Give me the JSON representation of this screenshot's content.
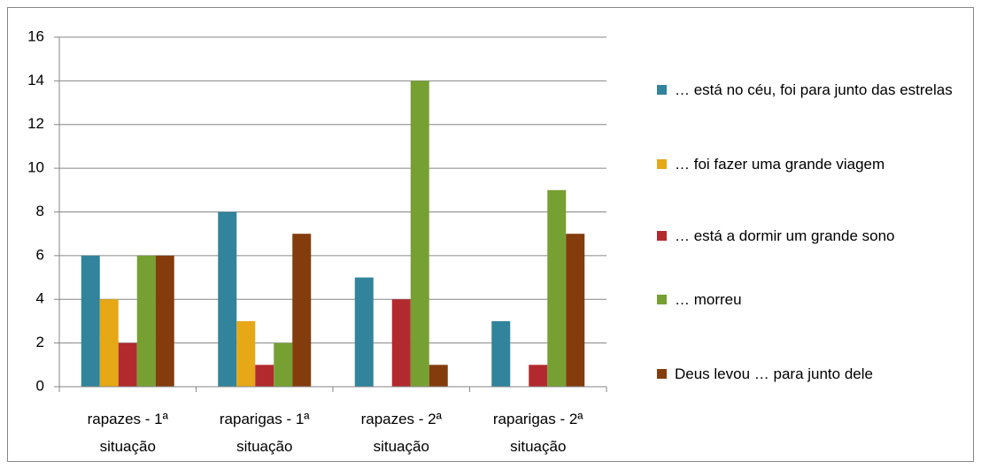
{
  "chart_data": {
    "type": "bar",
    "categories": [
      "rapazes - 1ª situação",
      "raparigas - 1ª situação",
      "rapazes - 2ª situação",
      "raparigas - 2ª situação"
    ],
    "series": [
      {
        "name": "… está no céu, foi para junto das estrelas",
        "color": "#31849b",
        "values": [
          6,
          8,
          5,
          3
        ]
      },
      {
        "name": "… foi fazer uma grande viagem",
        "color": "#e6a817",
        "values": [
          4,
          3,
          0,
          0
        ]
      },
      {
        "name": "… está a dormir um grande sono",
        "color": "#b22a2e",
        "values": [
          2,
          1,
          4,
          1
        ]
      },
      {
        "name": "… morreu",
        "color": "#77a033",
        "values": [
          6,
          2,
          14,
          9
        ]
      },
      {
        "name": "Deus levou … para junto dele",
        "color": "#843c0c",
        "values": [
          6,
          7,
          1,
          7
        ]
      }
    ],
    "ylim": [
      0,
      16
    ],
    "yticks": [
      0,
      2,
      4,
      6,
      8,
      10,
      12,
      14,
      16
    ],
    "grid": true,
    "legend": "right"
  }
}
